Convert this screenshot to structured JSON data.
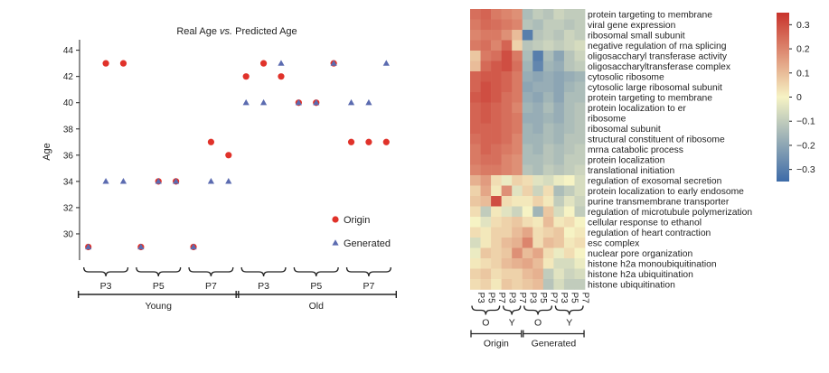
{
  "colors": {
    "origin": "#e0322a",
    "generated": "#5b6bb0",
    "axis": "#222222",
    "scale_high": "#c8332c",
    "scale_mid": "#f6f3c4",
    "scale_low": "#3d6ba8"
  },
  "chart_data": [
    {
      "type": "scatter",
      "title": "Real Age vs. Predicted Age",
      "title_main": "Real Age ",
      "title_italic": "vs.",
      "title_tail": " Predicted Age",
      "ylabel": "Age",
      "xlabel": "",
      "ylim": [
        28,
        44.8
      ],
      "yticks": [
        30,
        32,
        34,
        36,
        38,
        40,
        42,
        44
      ],
      "xlim": [
        -0.5,
        17.5
      ],
      "grid": false,
      "legend_position": "bottom-right",
      "series": [
        {
          "name": "Origin",
          "marker": "circle",
          "x": [
            0,
            1,
            2,
            3,
            4,
            5,
            6,
            7,
            8,
            9,
            10,
            11,
            12,
            13,
            14,
            15,
            16,
            17
          ],
          "y": [
            29,
            43,
            43,
            29,
            34,
            34,
            29,
            37,
            36,
            42,
            43,
            42,
            40,
            40,
            43,
            37,
            37,
            37
          ]
        },
        {
          "name": "Generated",
          "marker": "triangle",
          "x": [
            0,
            1,
            2,
            3,
            4,
            5,
            6,
            7,
            8,
            9,
            10,
            11,
            12,
            13,
            14,
            15,
            16,
            17
          ],
          "y": [
            29,
            34,
            34,
            29,
            34,
            34,
            29,
            34,
            34,
            40,
            40,
            43,
            40,
            40,
            43,
            40,
            40,
            43
          ]
        }
      ],
      "group_labels": [
        {
          "label": "P3",
          "from": 0,
          "to": 2
        },
        {
          "label": "P5",
          "from": 3,
          "to": 5
        },
        {
          "label": "P7",
          "from": 6,
          "to": 8
        },
        {
          "label": "P3",
          "from": 9,
          "to": 11
        },
        {
          "label": "P5",
          "from": 12,
          "to": 14
        },
        {
          "label": "P7",
          "from": 15,
          "to": 17
        }
      ],
      "super_groups": [
        {
          "label": "Young",
          "from": 0,
          "to": 8
        },
        {
          "label": "Old",
          "from": 9,
          "to": 17
        }
      ]
    },
    {
      "type": "heatmap",
      "row_labels": [
        "protein targeting to membrane",
        "viral gene expression",
        "ribosomal small subunit",
        "negative regulation of rna splicing",
        "oligosaccharyl transferase activity",
        "oligosaccharyltransferase complex",
        "cytosolic ribosome",
        "cytosolic large ribosomal subunit",
        "protein targeting to membrane",
        "protein localization to er",
        "ribosome",
        "ribosomal subunit",
        "structural constituent of ribosome",
        "mrna catabolic process",
        "protein localization",
        "translational initiation",
        "regulation of exosomal secretion",
        "protein localization to early endosome",
        "purine transmembrane transporter",
        "regulation of microtubule polymerization",
        "cellular response to ethanol",
        "regulation of heart contraction",
        "esc complex",
        "nuclear pore organization",
        "histone h2a monoubiquitination",
        "histone h2a ubiquitination",
        "histone ubiquitination"
      ],
      "col_labels": [
        "P3",
        "P5",
        "P7",
        "P3",
        "P7",
        "P3",
        "P5",
        "P7",
        "P3",
        "P5",
        "P7"
      ],
      "col_subgroups": [
        {
          "label": "O",
          "from": 0,
          "to": 2
        },
        {
          "label": "Y",
          "from": 3,
          "to": 4
        },
        {
          "label": "O",
          "from": 5,
          "to": 7
        },
        {
          "label": "Y",
          "from": 8,
          "to": 10
        }
      ],
      "col_groups": [
        {
          "label": "Origin",
          "from": 0,
          "to": 4
        },
        {
          "label": "Generated",
          "from": 5,
          "to": 10
        }
      ],
      "colorbar": {
        "min": -0.35,
        "max": 0.35,
        "ticks": [
          0.3,
          0.2,
          0.1,
          0,
          -0.1,
          -0.2,
          -0.3
        ]
      },
      "values": [
        [
          0.24,
          0.26,
          0.22,
          0.2,
          0.18,
          -0.14,
          -0.1,
          -0.12,
          -0.08,
          -0.1,
          -0.1
        ],
        [
          0.22,
          0.25,
          0.24,
          0.22,
          0.2,
          -0.12,
          -0.14,
          -0.1,
          -0.1,
          -0.12,
          -0.1
        ],
        [
          0.2,
          0.22,
          0.22,
          0.18,
          0.1,
          -0.3,
          -0.12,
          -0.1,
          -0.12,
          -0.08,
          -0.1
        ],
        [
          0.22,
          0.24,
          0.2,
          0.26,
          0.06,
          -0.12,
          -0.1,
          -0.08,
          -0.1,
          -0.08,
          -0.06
        ],
        [
          0.08,
          0.22,
          0.24,
          0.3,
          0.22,
          -0.14,
          -0.3,
          -0.14,
          -0.2,
          -0.12,
          -0.08
        ],
        [
          0.1,
          0.25,
          0.28,
          0.3,
          0.24,
          -0.16,
          -0.28,
          -0.16,
          -0.18,
          -0.12,
          -0.1
        ],
        [
          0.26,
          0.28,
          0.28,
          0.26,
          0.22,
          -0.18,
          -0.2,
          -0.18,
          -0.2,
          -0.18,
          -0.16
        ],
        [
          0.26,
          0.3,
          0.28,
          0.26,
          0.22,
          -0.2,
          -0.18,
          -0.18,
          -0.2,
          -0.16,
          -0.14
        ],
        [
          0.28,
          0.3,
          0.28,
          0.24,
          0.22,
          -0.18,
          -0.2,
          -0.16,
          -0.2,
          -0.14,
          -0.14
        ],
        [
          0.26,
          0.28,
          0.26,
          0.24,
          0.2,
          -0.16,
          -0.18,
          -0.14,
          -0.18,
          -0.14,
          -0.12
        ],
        [
          0.26,
          0.28,
          0.26,
          0.24,
          0.22,
          -0.18,
          -0.18,
          -0.16,
          -0.18,
          -0.14,
          -0.12
        ],
        [
          0.26,
          0.26,
          0.26,
          0.24,
          0.22,
          -0.16,
          -0.18,
          -0.14,
          -0.16,
          -0.14,
          -0.12
        ],
        [
          0.24,
          0.26,
          0.26,
          0.24,
          0.2,
          -0.16,
          -0.16,
          -0.14,
          -0.16,
          -0.12,
          -0.12
        ],
        [
          0.22,
          0.26,
          0.24,
          0.22,
          0.2,
          -0.14,
          -0.16,
          -0.12,
          -0.14,
          -0.12,
          -0.1
        ],
        [
          0.22,
          0.24,
          0.24,
          0.2,
          0.18,
          -0.14,
          -0.14,
          -0.12,
          -0.14,
          -0.1,
          -0.1
        ],
        [
          0.2,
          0.22,
          0.22,
          0.2,
          0.18,
          -0.12,
          -0.14,
          -0.1,
          -0.12,
          -0.1,
          -0.08
        ],
        [
          0.12,
          0.16,
          0.04,
          -0.02,
          0.06,
          0.04,
          -0.04,
          -0.06,
          -0.02,
          0.0,
          -0.06
        ],
        [
          0.06,
          0.14,
          0.02,
          0.18,
          -0.04,
          0.06,
          -0.08,
          0.04,
          -0.14,
          -0.1,
          -0.06
        ],
        [
          0.08,
          0.1,
          0.3,
          0.04,
          0.02,
          0.02,
          0.06,
          0.02,
          -0.1,
          -0.04,
          -0.08
        ],
        [
          0.04,
          -0.1,
          0.02,
          -0.04,
          -0.08,
          0.0,
          -0.16,
          0.08,
          -0.06,
          0.0,
          -0.1
        ],
        [
          0.0,
          -0.04,
          0.04,
          0.06,
          0.08,
          0.04,
          0.02,
          0.1,
          0.02,
          0.04,
          0.0
        ],
        [
          0.04,
          0.02,
          0.06,
          0.06,
          0.1,
          0.14,
          0.04,
          0.06,
          0.08,
          0.0,
          0.02
        ],
        [
          -0.06,
          0.02,
          0.06,
          0.1,
          0.12,
          0.2,
          0.04,
          0.1,
          0.08,
          0.02,
          0.04
        ],
        [
          -0.02,
          0.08,
          0.06,
          0.08,
          0.18,
          0.1,
          0.14,
          0.04,
          -0.02,
          0.04,
          0.0
        ],
        [
          0.02,
          0.04,
          0.06,
          0.1,
          0.12,
          0.14,
          0.1,
          0.02,
          -0.06,
          -0.06,
          -0.02
        ],
        [
          0.06,
          0.08,
          0.04,
          0.06,
          0.06,
          0.1,
          0.12,
          -0.1,
          -0.04,
          -0.08,
          -0.06
        ],
        [
          0.04,
          0.06,
          0.02,
          0.08,
          0.06,
          0.08,
          0.1,
          -0.12,
          -0.06,
          -0.1,
          -0.1
        ]
      ]
    }
  ]
}
